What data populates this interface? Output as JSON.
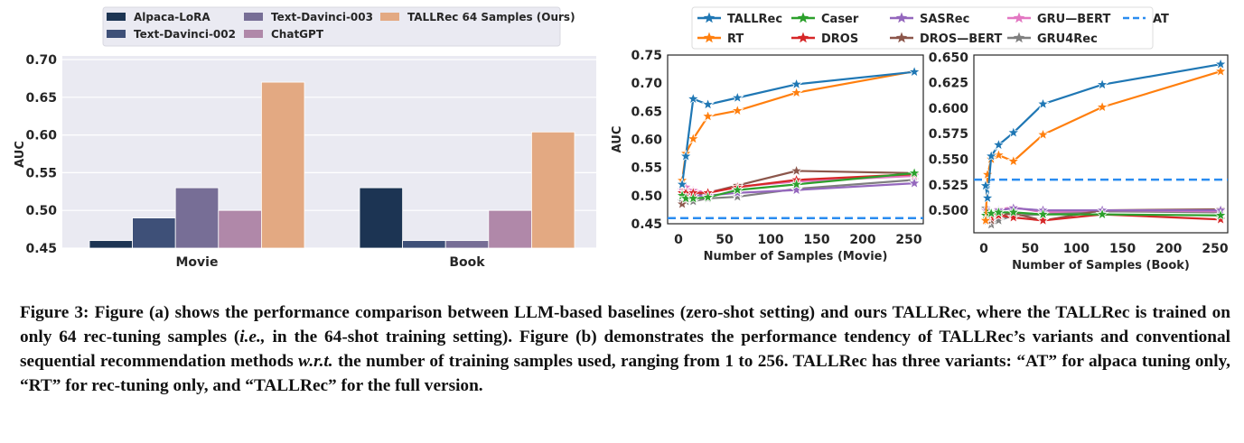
{
  "chart_data": [
    {
      "type": "bar",
      "panel": "a",
      "title": "",
      "xlabel": "",
      "ylabel": "AUC",
      "ylim": [
        0.45,
        0.7
      ],
      "yticks": [
        "0.45",
        "0.50",
        "0.55",
        "0.60",
        "0.65",
        "0.70"
      ],
      "categories": [
        "Movie",
        "Book"
      ],
      "legend_position": "top",
      "series": [
        {
          "name": "Alpaca-LoRA",
          "color": "#1c3453",
          "values": [
            0.46,
            0.53
          ]
        },
        {
          "name": "Text-Davinci-002",
          "color": "#3e5078",
          "values": [
            0.49,
            0.46
          ]
        },
        {
          "name": "Text-Davinci-003",
          "color": "#776e96",
          "values": [
            0.53,
            0.46
          ]
        },
        {
          "name": "ChatGPT",
          "color": "#b088a9",
          "values": [
            0.5,
            0.5
          ]
        },
        {
          "name": "TALLRec 64 Samples (Ours)",
          "color": "#e3a982",
          "values": [
            0.67,
            0.604
          ]
        }
      ]
    },
    {
      "type": "line",
      "panel": "b-movie",
      "xlabel": "Number of Samples (Movie)",
      "ylabel": "AUC",
      "xlim": [
        0,
        256
      ],
      "ylim": [
        0.45,
        0.75
      ],
      "xticks": [
        "0",
        "50",
        "100",
        "150",
        "200",
        "250"
      ],
      "yticks": [
        "0.45",
        "0.50",
        "0.55",
        "0.60",
        "0.65",
        "0.70",
        "0.75"
      ],
      "x": [
        4,
        8,
        16,
        32,
        64,
        128,
        256
      ],
      "series": [
        {
          "name": "TALLRec",
          "color": "#1f77b4",
          "values": [
            0.52,
            0.57,
            0.672,
            0.662,
            0.674,
            0.698,
            0.72
          ]
        },
        {
          "name": "RT",
          "color": "#ff7f0e",
          "values": [
            0.527,
            0.575,
            0.601,
            0.641,
            0.651,
            0.683,
            0.721
          ]
        },
        {
          "name": "Caser",
          "color": "#2ca02c",
          "values": [
            0.5,
            0.495,
            0.495,
            0.497,
            0.51,
            0.52,
            0.54
          ]
        },
        {
          "name": "DROS",
          "color": "#d62728",
          "values": [
            0.505,
            0.505,
            0.505,
            0.505,
            0.515,
            0.528,
            0.538
          ]
        },
        {
          "name": "SASRec",
          "color": "#9467bd",
          "values": [
            0.505,
            0.5,
            0.5,
            0.5,
            0.505,
            0.51,
            0.522
          ]
        },
        {
          "name": "DROS—BERT",
          "color": "#8c564b",
          "values": [
            0.485,
            0.5,
            0.5,
            0.505,
            0.518,
            0.544,
            0.54
          ]
        },
        {
          "name": "GRU—BERT",
          "color": "#e377c2",
          "values": [
            0.51,
            0.515,
            0.509,
            0.506,
            0.516,
            0.525,
            0.535
          ]
        },
        {
          "name": "GRU4Rec",
          "color": "#7f7f7f",
          "values": [
            0.49,
            0.49,
            0.49,
            0.495,
            0.498,
            0.512,
            0.528
          ]
        }
      ],
      "hline": {
        "name": "AT",
        "color": "#2a8cf0",
        "value": 0.46
      }
    },
    {
      "type": "line",
      "panel": "b-book",
      "xlabel": "Number of Samples (Book)",
      "ylabel": "",
      "xlim": [
        0,
        256
      ],
      "ylim": [
        0.478,
        0.652
      ],
      "xticks": [
        "0",
        "50",
        "100",
        "150",
        "200",
        "250"
      ],
      "yticks": [
        "0.500",
        "0.525",
        "0.550",
        "0.575",
        "0.600",
        "0.625",
        "0.650"
      ],
      "x": [
        2,
        4,
        8,
        16,
        32,
        64,
        128,
        256
      ],
      "series": [
        {
          "name": "TALLRec",
          "color": "#1f77b4",
          "values": [
            0.524,
            0.512,
            0.553,
            0.564,
            0.576,
            0.604,
            0.623,
            0.643
          ]
        },
        {
          "name": "RT",
          "color": "#ff7f0e",
          "values": [
            0.49,
            0.535,
            0.55,
            0.554,
            0.548,
            0.574,
            0.601,
            0.636
          ]
        },
        {
          "name": "Caser",
          "color": "#2ca02c",
          "values": [
            0.495,
            0.497,
            0.497,
            0.498,
            0.498,
            0.496,
            0.496,
            0.495
          ]
        },
        {
          "name": "DROS",
          "color": "#d62728",
          "values": [
            0.495,
            0.493,
            0.493,
            0.495,
            0.493,
            0.49,
            0.496,
            0.491
          ]
        },
        {
          "name": "SASRec",
          "color": "#9467bd",
          "values": [
            0.5,
            0.5,
            0.498,
            0.5,
            0.502,
            0.5,
            0.5,
            0.5
          ]
        },
        {
          "name": "DROS—BERT",
          "color": "#8c564b",
          "values": [
            0.495,
            0.49,
            0.49,
            0.495,
            0.497,
            0.49,
            0.5,
            0.501
          ]
        },
        {
          "name": "GRU—BERT",
          "color": "#e377c2",
          "values": [
            0.5,
            0.5,
            0.495,
            0.501,
            0.503,
            0.498,
            0.5,
            0.499
          ]
        },
        {
          "name": "GRU4Rec",
          "color": "#7f7f7f",
          "values": [
            0.502,
            0.495,
            0.486,
            0.49,
            0.495,
            0.496,
            0.499,
            0.498
          ]
        }
      ],
      "hline": {
        "name": "AT",
        "color": "#2a8cf0",
        "value": 0.53
      }
    }
  ],
  "line_legend": [
    "TALLRec",
    "RT",
    "Caser",
    "DROS",
    "SASRec",
    "DROS—BERT",
    "GRU—BERT",
    "GRU4Rec",
    "AT"
  ],
  "caption": {
    "p1": "Figure 3: Figure (a) shows the performance comparison between LLM-based baselines (zero-shot setting) and ours TALLRec, where the TALLRec is trained on only 64 rec-tuning samples (",
    "ie": "i.e.,",
    "p2": " in the 64-shot training setting). Figure (b) demonstrates the performance tendency of TALLRec’s variants and conventional sequential recommendation methods ",
    "wrt": "w.r.t.",
    "p3": " the number of training samples used, ranging from 1 to 256. TALLRec has three variants: “AT” for alpaca tuning only, “RT” for rec-tuning only, and “TALLRec” for the full version."
  }
}
